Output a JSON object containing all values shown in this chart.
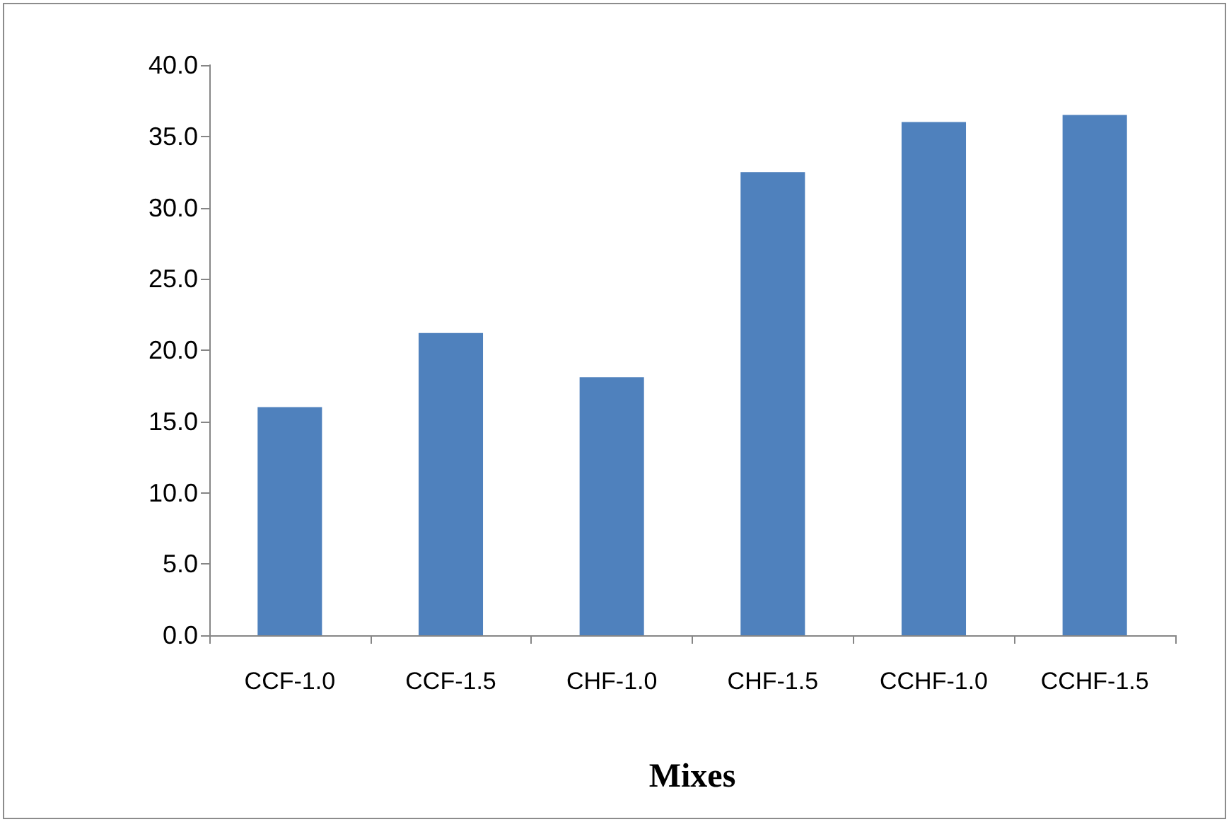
{
  "chart_data": {
    "type": "bar",
    "xlabel": "Mixes",
    "categories": [
      "CCF-1.0",
      "CCF-1.5",
      "CHF-1.0",
      "CHF-1.5",
      "CCHF-1.0",
      "CCHF-1.5"
    ],
    "values": [
      16.0,
      21.2,
      18.1,
      32.5,
      36.0,
      36.5
    ],
    "color": "#4f81bd",
    "ylim": [
      0,
      40
    ],
    "yticks": [
      {
        "value": 0,
        "label": "0.0"
      },
      {
        "value": 5,
        "label": "5.0"
      },
      {
        "value": 10,
        "label": "10.0"
      },
      {
        "value": 15,
        "label": "15.0"
      },
      {
        "value": 20,
        "label": "20.0"
      },
      {
        "value": 25,
        "label": "25.0"
      },
      {
        "value": 30,
        "label": "30.0"
      },
      {
        "value": 35,
        "label": "35.0"
      },
      {
        "value": 40,
        "label": "40.0"
      }
    ],
    "grid": false
  }
}
